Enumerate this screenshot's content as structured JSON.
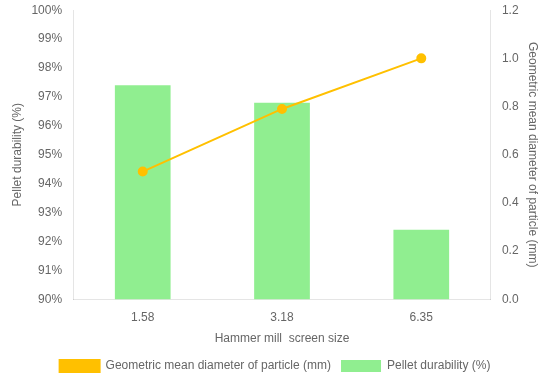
{
  "chart_data": {
    "type": "bar",
    "categories": [
      "1.58",
      "3.18",
      "6.35"
    ],
    "xlabel": "Hammer mill  screen size",
    "ylabel": "Pellet durability (%)",
    "y2label": "Geometric mean diameter of particle (mm)",
    "ylim": [
      90,
      100
    ],
    "yticks": [
      {
        "value": 90,
        "label": "90%"
      },
      {
        "value": 91,
        "label": "91%"
      },
      {
        "value": 92,
        "label": "92%"
      },
      {
        "value": 93,
        "label": "93%"
      },
      {
        "value": 94,
        "label": "94%"
      },
      {
        "value": 95,
        "label": "95%"
      },
      {
        "value": 96,
        "label": "96%"
      },
      {
        "value": 97,
        "label": "97%"
      },
      {
        "value": 98,
        "label": "98%"
      },
      {
        "value": 99,
        "label": "99%"
      },
      {
        "value": 100,
        "label": "100%"
      }
    ],
    "y2lim": [
      0,
      1.2
    ],
    "y2ticks": [
      {
        "value": 0,
        "label": "0.0"
      },
      0.2,
      0.4,
      0.6,
      0.8,
      {
        "value": 1,
        "label": "1.0"
      },
      1.2
    ],
    "series": [
      {
        "name": "Pellet durability (%)",
        "type": "bar",
        "color": "#90EE90",
        "values": [
          97.4,
          96.8,
          92.4
        ]
      },
      {
        "name": "Geometric mean diameter of particle (mm)",
        "type": "line",
        "axis": "y2",
        "color": "#FFC000",
        "marker": "circle",
        "values": [
          0.53,
          0.79,
          1.0
        ]
      }
    ],
    "grid": false,
    "legend": "bottom"
  }
}
